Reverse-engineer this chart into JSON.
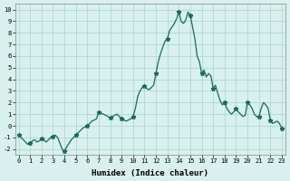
{
  "title": "",
  "xlabel": "Humidex (Indice chaleur)",
  "ylabel": "",
  "background_color": "#d8f0ee",
  "line_color": "#1a6b5a",
  "marker_color": "#1a6b5a",
  "grid_color": "#b0d8d0",
  "axis_bg": "#d8f0ee",
  "xlim": [
    0,
    23
  ],
  "ylim": [
    -2.5,
    10.5
  ],
  "yticks": [
    -2,
    -1,
    0,
    1,
    2,
    3,
    4,
    5,
    6,
    7,
    8,
    9,
    10
  ],
  "xticks": [
    0,
    1,
    2,
    3,
    4,
    5,
    6,
    7,
    8,
    9,
    10,
    11,
    12,
    13,
    14,
    15,
    16,
    17,
    18,
    19,
    20,
    21,
    22,
    23
  ],
  "x": [
    0.0,
    0.2,
    0.4,
    0.6,
    0.8,
    1.0,
    1.2,
    1.4,
    1.6,
    1.8,
    2.0,
    2.2,
    2.4,
    2.6,
    2.8,
    3.0,
    3.2,
    3.4,
    3.6,
    3.8,
    4.0,
    4.2,
    4.4,
    4.6,
    4.8,
    5.0,
    5.2,
    5.4,
    5.6,
    5.8,
    6.0,
    6.2,
    6.4,
    6.6,
    6.8,
    7.0,
    7.2,
    7.4,
    7.6,
    7.8,
    8.0,
    8.2,
    8.4,
    8.6,
    8.8,
    9.0,
    9.2,
    9.4,
    9.6,
    9.8,
    10.0,
    10.2,
    10.4,
    10.6,
    10.8,
    11.0,
    11.2,
    11.4,
    11.6,
    11.8,
    12.0,
    12.2,
    12.4,
    12.6,
    12.8,
    13.0,
    13.2,
    13.4,
    13.6,
    13.8,
    14.0,
    14.2,
    14.4,
    14.6,
    14.8,
    15.0,
    15.2,
    15.4,
    15.6,
    15.8,
    16.0,
    16.2,
    16.4,
    16.6,
    16.8,
    17.0,
    17.2,
    17.4,
    17.6,
    17.8,
    18.0,
    18.2,
    18.4,
    18.6,
    18.8,
    19.0,
    19.2,
    19.4,
    19.6,
    19.8,
    20.0,
    20.2,
    20.4,
    20.6,
    20.8,
    21.0,
    21.2,
    21.4,
    21.6,
    21.8,
    22.0,
    22.2,
    22.4,
    22.6,
    22.8,
    23.0
  ],
  "y": [
    -0.8,
    -1.0,
    -1.2,
    -1.4,
    -1.6,
    -1.5,
    -1.3,
    -1.2,
    -1.4,
    -1.3,
    -1.1,
    -1.2,
    -1.4,
    -1.2,
    -1.0,
    -0.9,
    -0.8,
    -1.0,
    -1.5,
    -2.0,
    -2.2,
    -1.8,
    -1.5,
    -1.2,
    -1.0,
    -0.8,
    -0.6,
    -0.4,
    -0.2,
    -0.1,
    0.0,
    0.2,
    0.4,
    0.5,
    0.6,
    1.2,
    1.1,
    1.0,
    0.9,
    0.8,
    0.7,
    0.8,
    0.9,
    1.0,
    0.8,
    0.6,
    0.5,
    0.4,
    0.5,
    0.6,
    0.8,
    1.5,
    2.5,
    3.0,
    3.3,
    3.4,
    3.2,
    3.1,
    3.3,
    3.5,
    4.5,
    5.5,
    6.2,
    6.8,
    7.3,
    7.5,
    8.2,
    8.5,
    8.8,
    9.2,
    9.8,
    9.0,
    8.8,
    9.1,
    9.8,
    9.5,
    8.5,
    7.5,
    6.0,
    5.5,
    4.5,
    4.8,
    4.2,
    4.5,
    4.3,
    3.2,
    3.5,
    2.8,
    2.2,
    1.8,
    2.0,
    1.5,
    1.2,
    1.0,
    1.2,
    1.5,
    1.2,
    1.0,
    0.8,
    0.9,
    2.0,
    1.8,
    1.5,
    1.0,
    0.8,
    0.8,
    1.5,
    2.0,
    1.8,
    1.5,
    0.5,
    0.2,
    0.3,
    0.4,
    0.2,
    -0.2
  ],
  "marker_x": [
    0,
    1,
    2,
    3,
    4,
    5,
    6,
    7,
    8,
    9,
    10,
    11,
    12,
    13,
    14,
    15,
    16,
    17,
    18,
    19,
    20,
    21,
    22,
    23
  ],
  "marker_y": [
    -0.8,
    -1.5,
    -1.1,
    -0.9,
    -2.2,
    -0.8,
    0.0,
    1.2,
    0.7,
    0.6,
    0.8,
    3.4,
    4.5,
    7.5,
    9.8,
    9.5,
    4.5,
    3.2,
    2.0,
    1.5,
    2.0,
    0.8,
    0.5,
    -0.2
  ]
}
